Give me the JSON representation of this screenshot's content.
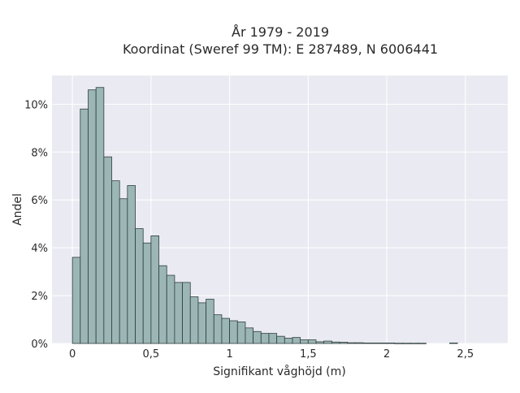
{
  "chart_data": {
    "type": "bar",
    "title_lines": [
      "År 1979 - 2019",
      "Koordinat (Sweref 99 TM): E 287489, N 6006441"
    ],
    "xlabel": "Signifikant våghöjd (m)",
    "ylabel": "Andel",
    "x_ticks": [
      {
        "value": 0,
        "label": "0"
      },
      {
        "value": 0.5,
        "label": "0,5"
      },
      {
        "value": 1,
        "label": "1"
      },
      {
        "value": 1.5,
        "label": "1,5"
      },
      {
        "value": 2,
        "label": "2"
      },
      {
        "value": 2.5,
        "label": "2,5"
      }
    ],
    "y_ticks": [
      {
        "value": 0,
        "label": "0%"
      },
      {
        "value": 2,
        "label": "2%"
      },
      {
        "value": 4,
        "label": "4%"
      },
      {
        "value": 6,
        "label": "6%"
      },
      {
        "value": 8,
        "label": "8%"
      },
      {
        "value": 10,
        "label": "10%"
      }
    ],
    "xlim": [
      -0.13,
      2.77
    ],
    "ylim": [
      0,
      11.2
    ],
    "bin_width": 0.05,
    "grid": true,
    "bin_starts": [
      0.0,
      0.05,
      0.1,
      0.15,
      0.2,
      0.25,
      0.3,
      0.35,
      0.4,
      0.45,
      0.5,
      0.55,
      0.6,
      0.65,
      0.7,
      0.75,
      0.8,
      0.85,
      0.9,
      0.95,
      1.0,
      1.05,
      1.1,
      1.15,
      1.2,
      1.25,
      1.3,
      1.35,
      1.4,
      1.45,
      1.5,
      1.55,
      1.6,
      1.65,
      1.7,
      1.75,
      1.8,
      1.85,
      1.9,
      1.95,
      2.0,
      2.05,
      2.1,
      2.15,
      2.2,
      2.25,
      2.3,
      2.35,
      2.4,
      2.45,
      2.5,
      2.55,
      2.6
    ],
    "values": [
      3.6,
      9.8,
      10.6,
      10.7,
      7.8,
      6.8,
      6.05,
      6.6,
      4.8,
      4.2,
      4.5,
      3.25,
      2.85,
      2.55,
      2.55,
      1.95,
      1.7,
      1.85,
      1.2,
      1.05,
      0.95,
      0.9,
      0.65,
      0.5,
      0.42,
      0.42,
      0.3,
      0.22,
      0.25,
      0.15,
      0.15,
      0.07,
      0.1,
      0.06,
      0.05,
      0.03,
      0.03,
      0.02,
      0.02,
      0.02,
      0.02,
      0.01,
      0.01,
      0.01,
      0.01,
      0.0,
      0.0,
      0.0,
      0.02,
      0.0,
      0.0,
      0.0,
      0.0
    ],
    "colors": {
      "bar_fill": "#9bb6b5",
      "bar_edge": "#2f3f3e",
      "plot_bg": "#eaeaf2",
      "grid": "#ffffff"
    }
  }
}
